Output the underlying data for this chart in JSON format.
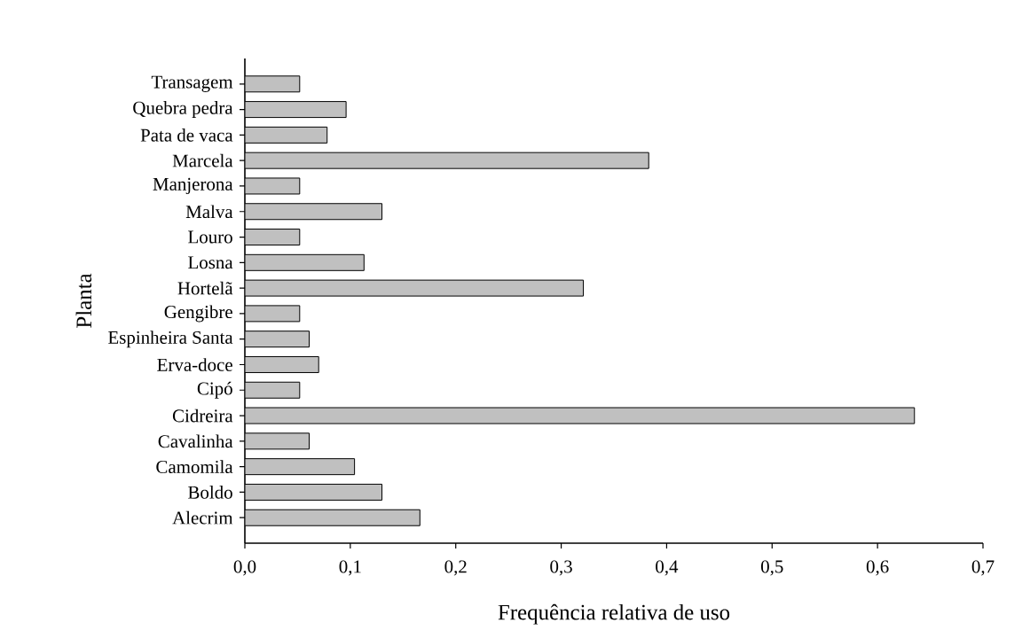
{
  "chart_data": {
    "type": "bar",
    "orientation": "horizontal",
    "xlabel": "Frequência relativa de uso",
    "ylabel": "Planta",
    "categories": [
      "Transagem",
      "Quebra pedra",
      "Pata de vaca",
      "Marcela",
      "Manjerona",
      "Malva",
      "Louro",
      "Losna",
      "Hortelã",
      "Gengibre",
      "Espinheira Santa",
      "Erva-doce",
      "Cipó",
      "Cidreira",
      "Cavalinha",
      "Camomila",
      "Boldo",
      "Alecrim"
    ],
    "values": [
      0.052,
      0.096,
      0.078,
      0.383,
      0.052,
      0.13,
      0.052,
      0.113,
      0.321,
      0.052,
      0.061,
      0.07,
      0.052,
      0.635,
      0.061,
      0.104,
      0.13,
      0.166
    ],
    "color": "#c0c0c0",
    "xlim": [
      0,
      0.7
    ],
    "xticks": [
      {
        "value": 0,
        "label": "0,0"
      },
      {
        "value": 0.1,
        "label": "0,1"
      },
      {
        "value": 0.2,
        "label": "0,2"
      },
      {
        "value": 0.3,
        "label": "0,3"
      },
      {
        "value": 0.4,
        "label": "0,4"
      },
      {
        "value": 0.5,
        "label": "0,5"
      },
      {
        "value": 0.6,
        "label": "0,6"
      },
      {
        "value": 0.7,
        "label": "0,7"
      }
    ],
    "grid": false
  }
}
